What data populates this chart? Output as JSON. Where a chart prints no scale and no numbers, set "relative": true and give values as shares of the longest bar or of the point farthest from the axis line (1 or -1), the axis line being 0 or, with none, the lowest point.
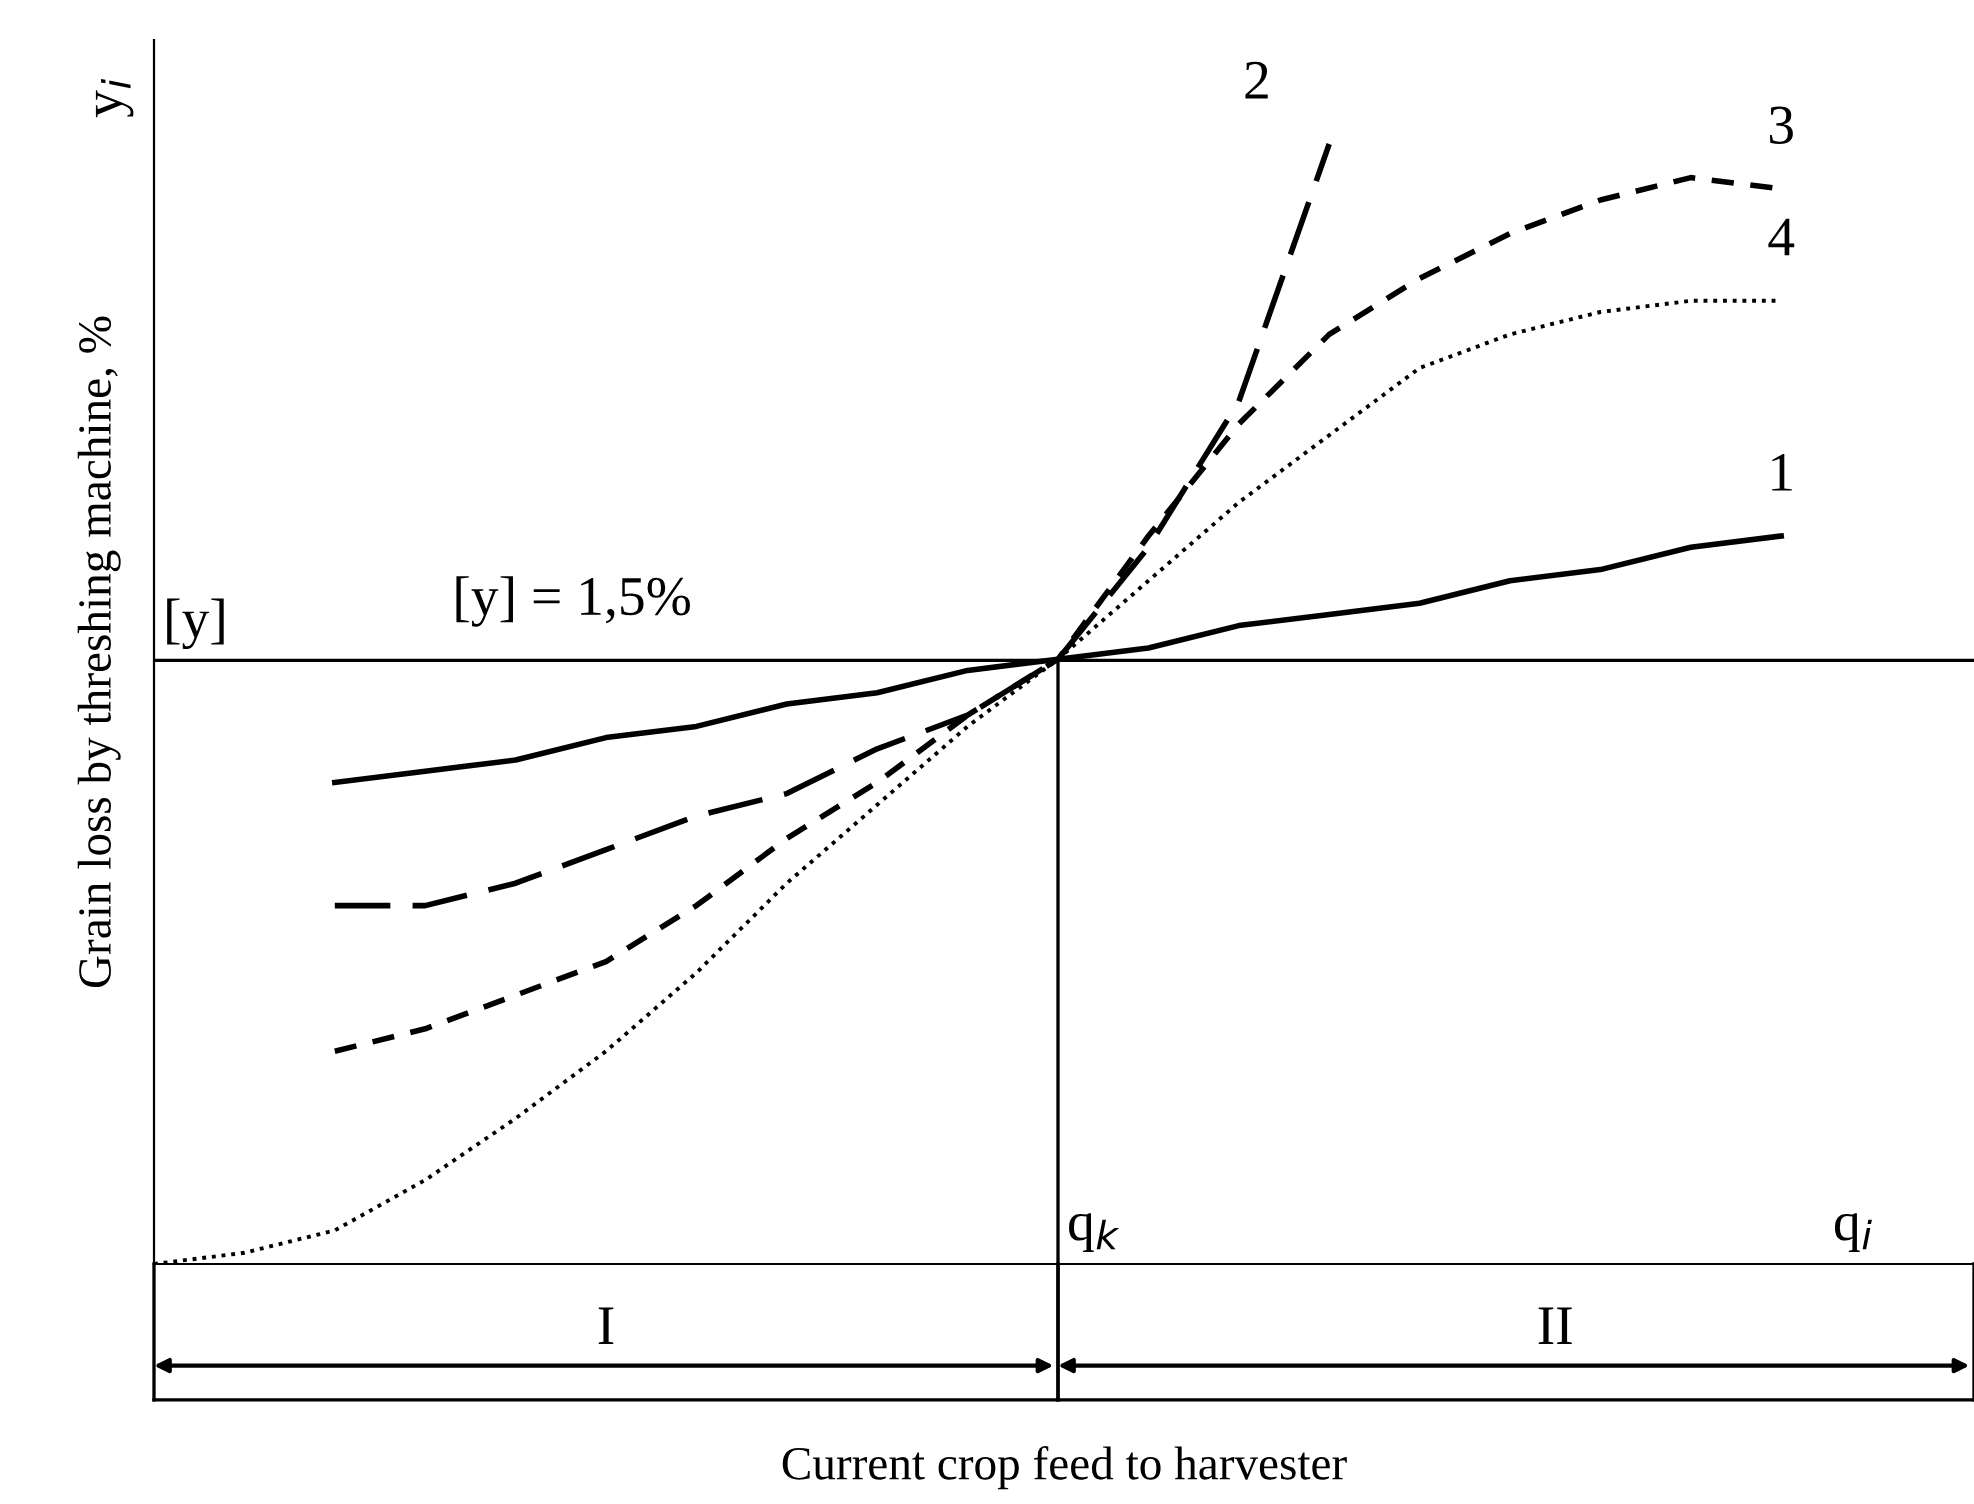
{
  "chart_data": {
    "type": "line",
    "relative": true,
    "xlabel": "Current crop feed to harvester",
    "ylabel": "Grain loss by threshing machine, %",
    "categories": [
      null,
      null,
      null,
      null,
      null,
      null,
      null,
      null,
      null,
      null,
      null,
      null,
      null,
      null,
      null,
      null,
      null,
      null,
      null
    ],
    "series": [
      {
        "name": "1",
        "color": "#000000",
        "line_style": "solid",
        "values": [
          null,
          null,
          0.43,
          0.44,
          0.45,
          0.47,
          0.48,
          0.5,
          0.51,
          0.53,
          0.54,
          0.55,
          0.57,
          0.58,
          0.59,
          0.61,
          0.62,
          0.64,
          0.65
        ]
      },
      {
        "name": "2",
        "color": "#000000",
        "line_style": "long dashed",
        "values": [
          null,
          null,
          0.32,
          0.32,
          0.34,
          0.37,
          0.4,
          0.42,
          0.46,
          0.49,
          0.54,
          0.64,
          0.77,
          1.0,
          null,
          null,
          null,
          null,
          null
        ]
      },
      {
        "name": "3",
        "color": "#000000",
        "line_style": "dashed",
        "values": [
          null,
          null,
          0.19,
          0.21,
          0.24,
          0.27,
          0.32,
          0.38,
          0.43,
          0.49,
          0.54,
          0.65,
          0.75,
          0.83,
          0.88,
          0.92,
          0.95,
          0.97,
          0.96
        ]
      },
      {
        "name": "4",
        "color": "#000000",
        "line_style": "dotted",
        "values": [
          0.0,
          0.01,
          0.03,
          0.075,
          0.13,
          0.19,
          0.26,
          0.34,
          0.41,
          0.48,
          0.54,
          0.61,
          0.68,
          0.74,
          0.8,
          0.83,
          0.85,
          0.86,
          0.86
        ]
      }
    ],
    "ref_lines": [
      {
        "axis": "y",
        "value": 0.539,
        "color": "#000000"
      }
    ],
    "annotations": [
      "y$_{i}$",
      "[y]",
      "[y] = 1,5%",
      "q$_{k}$",
      "q$_{i}$",
      "I",
      "II"
    ],
    "grid": false,
    "legend": false,
    "marker": "none"
  }
}
